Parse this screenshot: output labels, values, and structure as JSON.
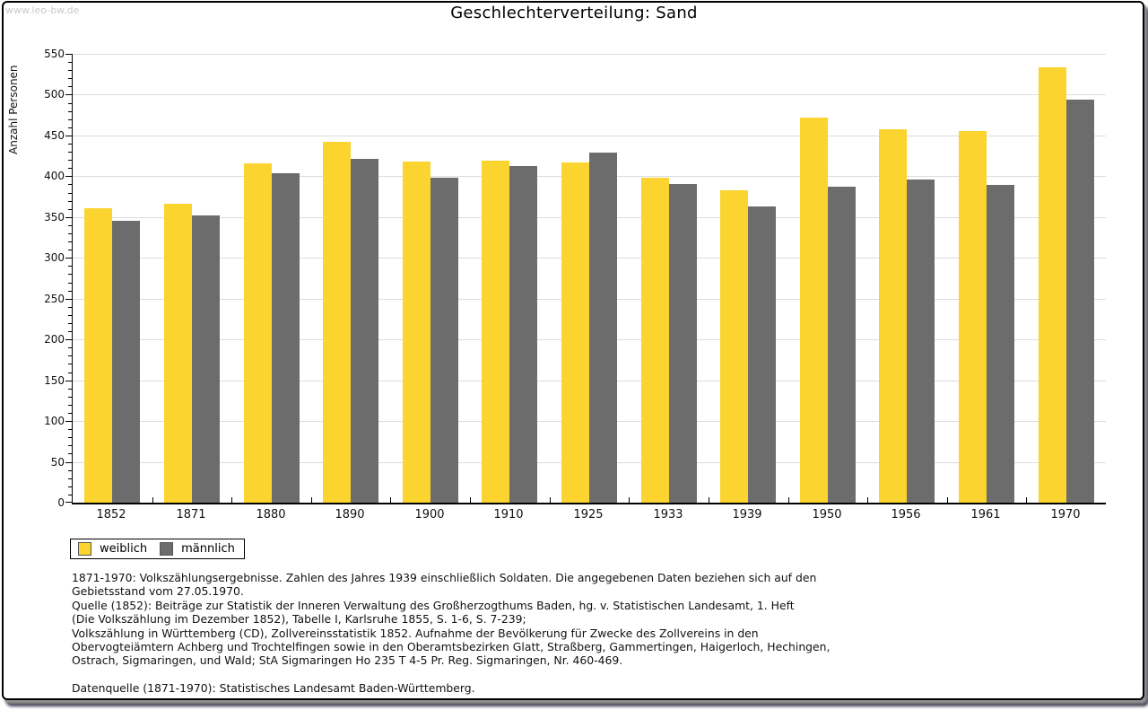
{
  "watermark": "www.leo-bw.de",
  "title": "Geschlechterverteilung: Sand",
  "chart_data": {
    "type": "bar",
    "title": "Geschlechterverteilung: Sand",
    "xlabel": "",
    "ylabel": "Anzahl Personen",
    "ylim": [
      0,
      550
    ],
    "ytick_step": 50,
    "yminor_step": 10,
    "grid": true,
    "legend_position": "bottom-left",
    "categories": [
      "1852",
      "1871",
      "1880",
      "1890",
      "1900",
      "1910",
      "1925",
      "1933",
      "1939",
      "1950",
      "1956",
      "1961",
      "1970"
    ],
    "series": [
      {
        "name": "weiblich",
        "color": "#FCD42F",
        "values": [
          361,
          366,
          416,
          442,
          418,
          419,
          417,
          398,
          383,
          472,
          458,
          455,
          533
        ]
      },
      {
        "name": "männlich",
        "color": "#6C6C6C",
        "values": [
          345,
          352,
          404,
          421,
          398,
          412,
          429,
          390,
          363,
          387,
          396,
          389,
          494
        ]
      }
    ]
  },
  "legend": {
    "items": [
      {
        "label": "weiblich",
        "color": "#FCD42F"
      },
      {
        "label": "männlich",
        "color": "#6C6C6C"
      }
    ]
  },
  "footnotes": {
    "lines": [
      "1871-1970: Volkszählungsergebnisse. Zahlen des Jahres 1939 einschließlich Soldaten. Die angegebenen Daten beziehen sich auf den",
      "Gebietsstand vom 27.05.1970.",
      "Quelle (1852): Beiträge zur Statistik der Inneren Verwaltung des Großherzogthums Baden, hg. v. Statistischen Landesamt, 1. Heft",
      "(Die Volkszählung im Dezember 1852), Tabelle I, Karlsruhe 1855, S. 1-6, S. 7-239;",
      "Volkszählung in Württemberg (CD), Zollvereinsstatistik 1852. Aufnahme der Bevölkerung für Zwecke des Zollvereins in den",
      "Obervogteiämtern Achberg und Trochtelfingen sowie in den Oberamtsbezirken Glatt, Straßberg, Gammertingen, Haigerloch, Hechingen,",
      "Ostrach, Sigmaringen, und Wald; StA Sigmaringen Ho 235 T 4-5 Pr. Reg. Sigmaringen, Nr. 460-469."
    ],
    "datasource": "Datenquelle (1871-1970): Statistisches Landesamt Baden-Württemberg."
  }
}
